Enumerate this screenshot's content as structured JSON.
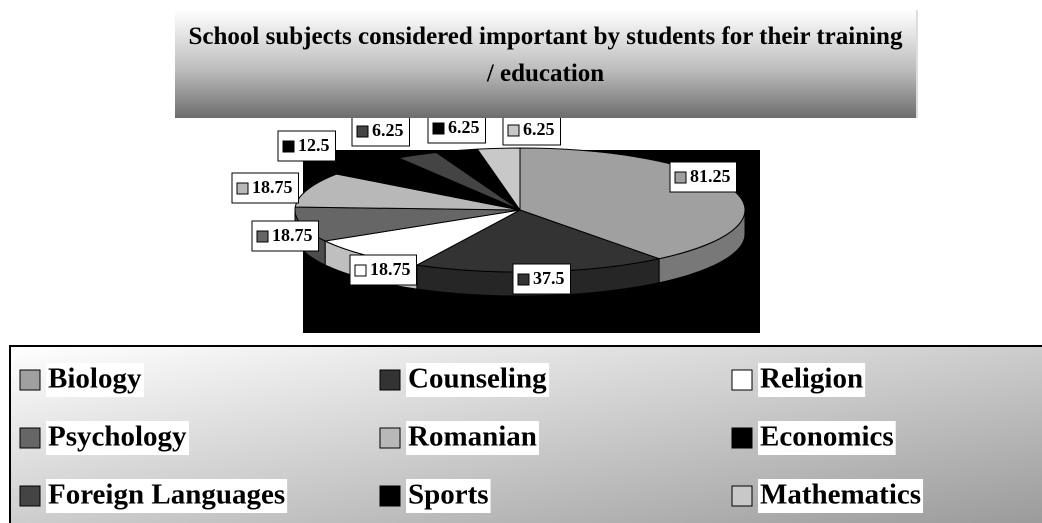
{
  "chart_data": {
    "type": "pie3d",
    "title": "School subjects considered important by students for their training / education",
    "categories": [
      "Biology",
      "Counseling",
      "Religion",
      "Psychology",
      "Romanian",
      "Economics",
      "Foreign Languages",
      "Sports",
      "Mathematics"
    ],
    "values": [
      81.25,
      37.5,
      18.75,
      18.75,
      18.75,
      12.5,
      6.25,
      6.25,
      6.25
    ],
    "colors": [
      "#a0a0a0",
      "#333333",
      "#ffffff",
      "#666666",
      "#b8b8b8",
      "#000000",
      "#444444",
      "#000000",
      "#c8c8c8"
    ],
    "legend": "bottom"
  }
}
